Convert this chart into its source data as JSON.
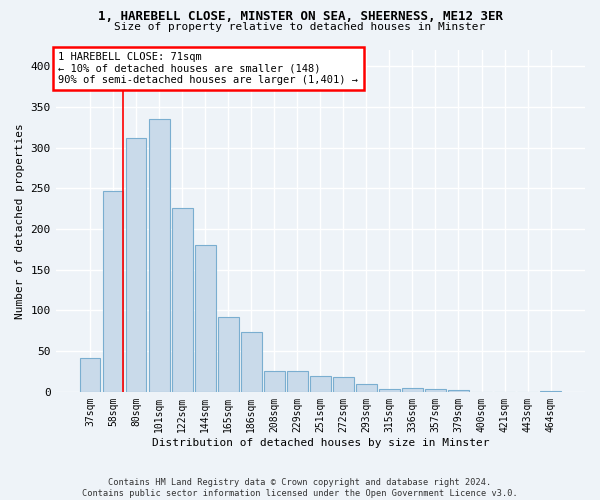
{
  "title1": "1, HAREBELL CLOSE, MINSTER ON SEA, SHEERNESS, ME12 3ER",
  "title2": "Size of property relative to detached houses in Minster",
  "xlabel": "Distribution of detached houses by size in Minster",
  "ylabel": "Number of detached properties",
  "bar_color": "#c9daea",
  "bar_edgecolor": "#7aaed0",
  "categories": [
    "37sqm",
    "58sqm",
    "80sqm",
    "101sqm",
    "122sqm",
    "144sqm",
    "165sqm",
    "186sqm",
    "208sqm",
    "229sqm",
    "251sqm",
    "272sqm",
    "293sqm",
    "315sqm",
    "336sqm",
    "357sqm",
    "379sqm",
    "400sqm",
    "421sqm",
    "443sqm",
    "464sqm"
  ],
  "values": [
    42,
    247,
    312,
    335,
    226,
    180,
    92,
    74,
    26,
    26,
    19,
    18,
    10,
    4,
    5,
    4,
    2,
    0,
    0,
    0,
    1
  ],
  "ylim": [
    0,
    420
  ],
  "yticks": [
    0,
    50,
    100,
    150,
    200,
    250,
    300,
    350,
    400
  ],
  "red_line_x": 1.42,
  "annotation_text_line1": "1 HAREBELL CLOSE: 71sqm",
  "annotation_text_line2": "← 10% of detached houses are smaller (148)",
  "annotation_text_line3": "90% of semi-detached houses are larger (1,401) →",
  "background_color": "#eef3f8",
  "grid_color": "#ffffff",
  "footnote_line1": "Contains HM Land Registry data © Crown copyright and database right 2024.",
  "footnote_line2": "Contains public sector information licensed under the Open Government Licence v3.0."
}
